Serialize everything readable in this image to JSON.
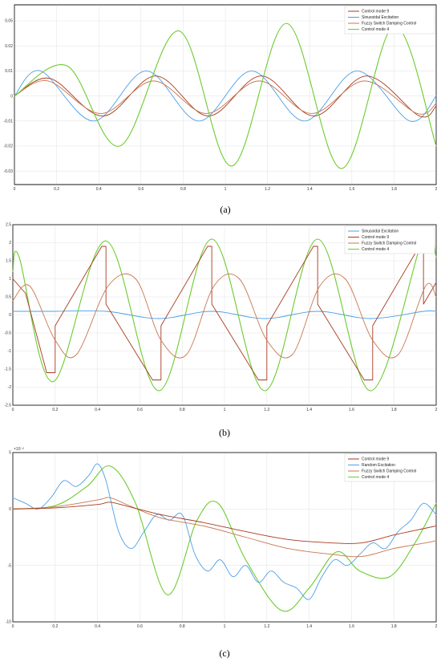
{
  "colors": {
    "green": "#6ccb2f",
    "blue": "#4a9fe8",
    "red_dark": "#a83a1e",
    "red_light": "#c8764e",
    "grid": "#e6e6e6"
  },
  "chart_data": [
    {
      "id": "a",
      "type": "line",
      "label": "(a)",
      "x_range": [
        0,
        2
      ],
      "ylim": [
        -0.05,
        0.05
      ],
      "grid": true,
      "legend_position": "top-right",
      "xticks": [
        "0",
        "0.2",
        "0.4",
        "0.6",
        "0.8",
        "1",
        "1.2",
        "1.4",
        "1.6",
        "1.8",
        "2"
      ],
      "yticks": [
        "0.05",
        "0.02",
        "0.01",
        "0",
        "-0.01",
        "-0.02",
        "-0.03"
      ],
      "legend": [
        {
          "label": "Control mode 9",
          "color": "#a83a1e"
        },
        {
          "label": "Sinusoidal Excitation",
          "color": "#4a9fe8"
        },
        {
          "label": "Fuzzy Switch Damping Control",
          "color": "#c8764e"
        },
        {
          "label": "Control mode 4",
          "color": "#6ccb2f"
        }
      ],
      "series": [
        {
          "name": "Sinusoidal Excitation",
          "color": "#4a9fe8",
          "x": [
            0,
            0.125,
            0.375,
            0.625,
            0.875,
            1.125,
            1.375,
            1.625,
            1.875,
            2.0
          ],
          "y": [
            0,
            0.01,
            -0.01,
            0.01,
            -0.01,
            0.01,
            -0.01,
            0.01,
            -0.01,
            0
          ]
        },
        {
          "name": "Control mode 9",
          "color": "#a83a1e",
          "x": [
            0,
            0.17,
            0.42,
            0.67,
            0.92,
            1.17,
            1.42,
            1.67,
            1.92,
            2.0
          ],
          "y": [
            0,
            0.007,
            -0.008,
            0.008,
            -0.008,
            0.008,
            -0.008,
            0.008,
            -0.008,
            -0.004
          ]
        },
        {
          "name": "Fuzzy Switch Damping Control",
          "color": "#c8764e",
          "x": [
            0,
            0.16,
            0.41,
            0.66,
            0.91,
            1.16,
            1.41,
            1.66,
            1.91,
            2.0
          ],
          "y": [
            0,
            0.006,
            -0.007,
            0.006,
            -0.007,
            0.006,
            -0.007,
            0.006,
            -0.007,
            -0.003
          ]
        },
        {
          "name": "Control mode 4",
          "color": "#6ccb2f",
          "x": [
            0,
            0.25,
            0.5,
            0.78,
            1.03,
            1.29,
            1.55,
            1.8,
            2.0
          ],
          "y": [
            0,
            0.012,
            -0.02,
            0.026,
            -0.028,
            0.029,
            -0.029,
            0.028,
            -0.02
          ]
        }
      ]
    },
    {
      "id": "b",
      "type": "line",
      "label": "(b)",
      "x_range": [
        0,
        2
      ],
      "ylim": [
        -2.5,
        2.5
      ],
      "grid": true,
      "legend_position": "top-right",
      "xticks": [
        "0",
        "0.2",
        "0.4",
        "0.6",
        "0.8",
        "1",
        "1.2",
        "1.4",
        "1.6",
        "1.8",
        "2"
      ],
      "yticks": [
        "2.5",
        "2",
        "1.5",
        "1",
        "0.5",
        "0",
        "-0.5",
        "-1",
        "-1.5",
        "-2",
        "-2.5"
      ],
      "legend": [
        {
          "label": "Sinusoidal Excitation",
          "color": "#4a9fe8"
        },
        {
          "label": "Control mode 9",
          "color": "#a83a1e"
        },
        {
          "label": "Fuzzy Switch Damping Control",
          "color": "#c8764e"
        },
        {
          "label": "Control mode 4",
          "color": "#6ccb2f"
        }
      ],
      "series": [
        {
          "name": "Sinusoidal Excitation",
          "color": "#4a9fe8",
          "x": [
            0,
            0.19,
            0.44,
            0.69,
            0.94,
            1.19,
            1.44,
            1.69,
            1.94,
            2.0
          ],
          "y": [
            0.1,
            0.1,
            0.1,
            -0.1,
            0.1,
            -0.1,
            0.1,
            -0.1,
            0.1,
            0.1
          ]
        },
        {
          "name": "Control mode 4",
          "color": "#6ccb2f",
          "x": [
            0,
            0.03,
            0.19,
            0.44,
            0.69,
            0.94,
            1.19,
            1.44,
            1.69,
            1.94,
            2.0
          ],
          "y": [
            1.2,
            1.6,
            -1.85,
            2.05,
            -2.1,
            2.1,
            -2.1,
            2.1,
            -2.1,
            2.15,
            1.6
          ]
        },
        {
          "name": "Control mode 9",
          "color": "#a83a1e",
          "x": [
            0,
            0.06,
            0.16,
            0.2,
            0.2,
            0.42,
            0.44,
            0.44,
            0.66,
            0.7,
            0.7,
            0.92,
            0.94,
            0.94,
            1.16,
            1.2,
            1.2,
            1.42,
            1.44,
            1.44,
            1.66,
            1.7,
            1.7,
            1.92,
            1.94,
            1.94,
            2.0
          ],
          "y": [
            1.0,
            0.6,
            -1.6,
            -1.6,
            -0.3,
            1.9,
            1.9,
            0.3,
            -1.8,
            -1.8,
            -0.3,
            1.9,
            1.9,
            0.3,
            -1.8,
            -1.8,
            -0.3,
            1.9,
            1.9,
            0.3,
            -1.8,
            -1.8,
            -0.3,
            1.9,
            1.9,
            0.3,
            0.9
          ]
        },
        {
          "name": "Fuzzy Switch Damping Control",
          "color": "#c8764e",
          "x": [
            0,
            0.08,
            0.2,
            0.3,
            0.45,
            0.58,
            0.7,
            0.82,
            0.95,
            1.07,
            1.2,
            1.32,
            1.45,
            1.57,
            1.7,
            1.82,
            1.95,
            2.0
          ],
          "y": [
            0.4,
            0.8,
            -0.7,
            -1.1,
            0.8,
            1.0,
            -0.7,
            -1.1,
            0.8,
            1.0,
            -0.7,
            -1.1,
            0.8,
            1.0,
            -0.7,
            -1.1,
            0.8,
            0.5
          ]
        }
      ]
    },
    {
      "id": "c",
      "type": "line",
      "label": "(c)",
      "x_range": [
        0,
        2
      ],
      "ylim": [
        -10,
        5
      ],
      "y_exponent": "×10⁻²",
      "grid": true,
      "legend_position": "top-right",
      "xticks": [
        "0",
        "0.2",
        "0.4",
        "0.6",
        "0.8",
        "1",
        "1.2",
        "1.4",
        "1.6",
        "1.8",
        "2"
      ],
      "yticks": [
        "5",
        "0",
        "-5",
        "-10"
      ],
      "legend": [
        {
          "label": "Control mode 9",
          "color": "#a83a1e"
        },
        {
          "label": "Random Excitation",
          "color": "#4a9fe8"
        },
        {
          "label": "Fuzzy Switch Damping Control",
          "color": "#c8764e"
        },
        {
          "label": "Control mode 4",
          "color": "#6ccb2f"
        }
      ],
      "series": [
        {
          "name": "Control mode 4",
          "color": "#6ccb2f",
          "x": [
            0,
            0.2,
            0.35,
            0.46,
            0.58,
            0.73,
            0.87,
            0.97,
            1.1,
            1.27,
            1.4,
            1.53,
            1.64,
            1.78,
            1.9,
            2.0
          ],
          "y": [
            0,
            0.3,
            2.0,
            3.8,
            0.5,
            -7.6,
            -1.0,
            0.5,
            -4.5,
            -9.0,
            -7.0,
            -3.8,
            -5.5,
            -6.0,
            -3.0,
            0.5
          ]
        },
        {
          "name": "Random Excitation",
          "color": "#4a9fe8",
          "x": [
            0,
            0.06,
            0.12,
            0.18,
            0.24,
            0.3,
            0.36,
            0.4,
            0.44,
            0.5,
            0.56,
            0.62,
            0.68,
            0.74,
            0.8,
            0.86,
            0.92,
            0.98,
            1.04,
            1.1,
            1.16,
            1.22,
            1.28,
            1.34,
            1.4,
            1.46,
            1.52,
            1.58,
            1.64,
            1.7,
            1.76,
            1.82,
            1.88,
            1.94,
            2.0
          ],
          "y": [
            1.0,
            0.5,
            0.0,
            1.0,
            2.5,
            2.0,
            3.0,
            4.0,
            2.5,
            -2.0,
            -3.5,
            -2.0,
            -0.5,
            -1.0,
            -0.5,
            -4.0,
            -5.5,
            -4.5,
            -6.0,
            -5.0,
            -6.5,
            -5.5,
            -6.5,
            -7.0,
            -8.0,
            -6.0,
            -4.5,
            -5.0,
            -4.0,
            -3.0,
            -3.5,
            -2.0,
            -1.0,
            0.5,
            -0.5
          ]
        },
        {
          "name": "Fuzzy Switch Damping Control",
          "color": "#c8764e",
          "x": [
            0,
            0.2,
            0.4,
            0.46,
            0.55,
            0.7,
            0.9,
            1.1,
            1.3,
            1.5,
            1.65,
            1.8,
            1.95,
            2.0
          ],
          "y": [
            0,
            0.2,
            0.8,
            1.0,
            0.3,
            -0.8,
            -1.5,
            -2.5,
            -3.5,
            -4.0,
            -4.2,
            -3.5,
            -3.0,
            -2.8
          ]
        },
        {
          "name": "Control mode 9",
          "color": "#a83a1e",
          "x": [
            0,
            0.2,
            0.4,
            0.46,
            0.55,
            0.7,
            0.9,
            1.1,
            1.3,
            1.5,
            1.65,
            1.8,
            1.95,
            2.0
          ],
          "y": [
            0,
            0.1,
            0.4,
            0.6,
            0.2,
            -0.5,
            -1.2,
            -2.0,
            -2.7,
            -3.0,
            -3.0,
            -2.3,
            -1.7,
            -1.5
          ]
        }
      ]
    }
  ]
}
